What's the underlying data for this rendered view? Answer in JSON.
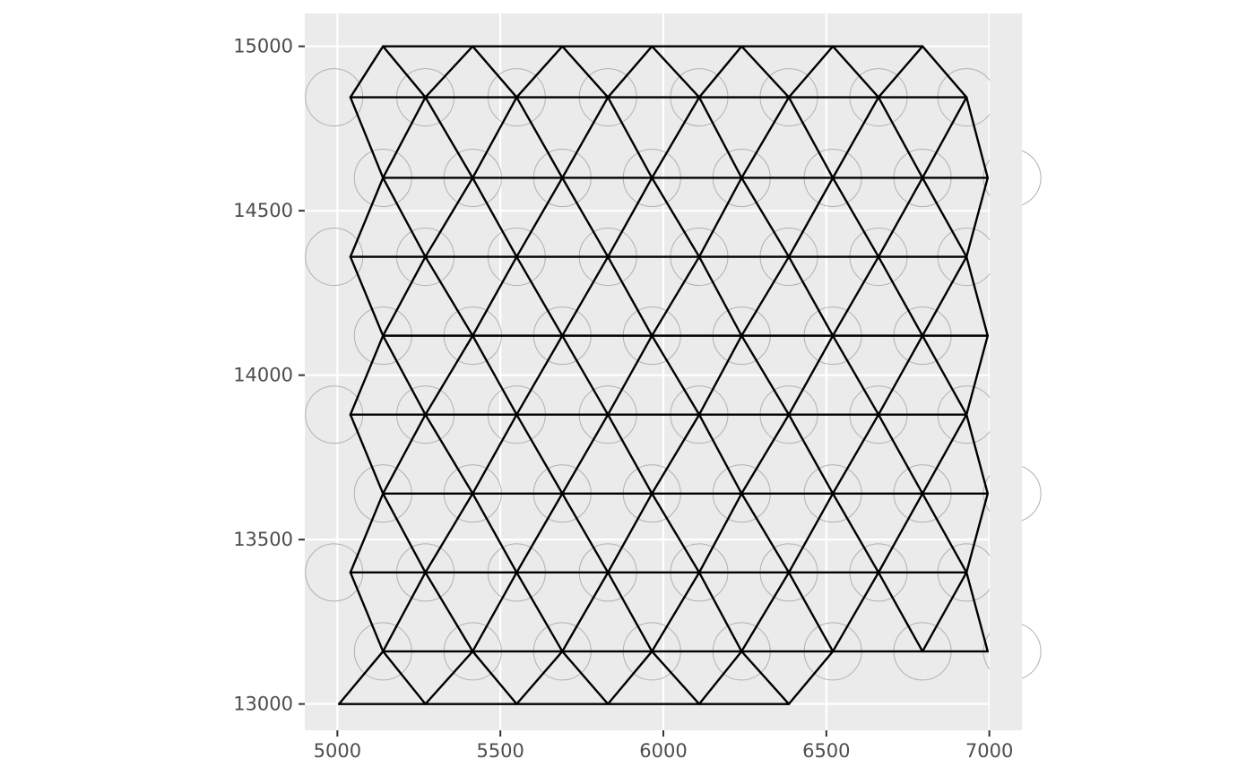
{
  "chart_data": {
    "type": "scatter",
    "description": "Spatial neighbor graph over hexagonal spot grid",
    "title": "",
    "xlabel": "",
    "ylabel": "",
    "xlim": [
      4900,
      7100
    ],
    "ylim": [
      12920,
      15100
    ],
    "grid": true,
    "background": "#ebebeb",
    "grid_color": "#ffffff",
    "edge_color": "#000000",
    "spot_outline_color": "#b0b0b0",
    "spot_radius": 88,
    "x_ticks": [
      5000,
      5500,
      6000,
      6500,
      7000
    ],
    "x_tick_labels": [
      "5000",
      "5500",
      "6000",
      "6500",
      "7000"
    ],
    "y_ticks": [
      13000,
      13500,
      14000,
      14500,
      15000
    ],
    "y_tick_labels": [
      "13000",
      "13500",
      "14000",
      "14500",
      "15000"
    ],
    "rows": [
      {
        "y": 15000,
        "x": [
          5140,
          5415,
          5690,
          5965,
          6240,
          6520,
          6795
        ]
      },
      {
        "y": 14845,
        "x": [
          5040,
          5270,
          5550,
          5830,
          6110,
          6385,
          6660,
          6930
        ]
      },
      {
        "y": 14600,
        "x": [
          5140,
          5415,
          5690,
          5965,
          6240,
          6520,
          6795,
          6995
        ]
      },
      {
        "y": 14360,
        "x": [
          5040,
          5270,
          5550,
          5830,
          6110,
          6385,
          6660,
          6930
        ]
      },
      {
        "y": 14120,
        "x": [
          5140,
          5415,
          5690,
          5965,
          6240,
          6520,
          6795,
          6995
        ]
      },
      {
        "y": 13880,
        "x": [
          5040,
          5270,
          5550,
          5830,
          6110,
          6385,
          6660,
          6930
        ]
      },
      {
        "y": 13640,
        "x": [
          5140,
          5415,
          5690,
          5965,
          6240,
          6520,
          6795,
          6995
        ]
      },
      {
        "y": 13400,
        "x": [
          5040,
          5270,
          5550,
          5830,
          6110,
          6385,
          6660,
          6930
        ]
      },
      {
        "y": 13160,
        "x": [
          5140,
          5415,
          5690,
          5965,
          6240,
          6520,
          6795,
          6995
        ]
      },
      {
        "y": 13000,
        "x": [
          5005,
          5270,
          5550,
          5830,
          6110,
          6385
        ]
      }
    ],
    "spot_centers": [
      {
        "y": 14845,
        "x": [
          4990,
          5270,
          5550,
          5830,
          6110,
          6385,
          6660,
          6930
        ]
      },
      {
        "y": 14600,
        "x": [
          5140,
          5415,
          5690,
          5965,
          6240,
          6520,
          6795,
          7070
        ]
      },
      {
        "y": 14360,
        "x": [
          4990,
          5270,
          5550,
          5830,
          6110,
          6385,
          6660,
          6930
        ]
      },
      {
        "y": 14120,
        "x": [
          5140,
          5415,
          5690,
          5965,
          6240,
          6520,
          6795
        ]
      },
      {
        "y": 13880,
        "x": [
          4990,
          5270,
          5550,
          5830,
          6110,
          6385,
          6660,
          6930
        ]
      },
      {
        "y": 13640,
        "x": [
          5140,
          5415,
          5690,
          5965,
          6240,
          6520,
          6795,
          7070
        ]
      },
      {
        "y": 13400,
        "x": [
          4990,
          5270,
          5550,
          5830,
          6110,
          6385,
          6660,
          6930
        ]
      },
      {
        "y": 13160,
        "x": [
          5140,
          5415,
          5690,
          5965,
          6240,
          6520,
          6795,
          7070
        ]
      }
    ]
  }
}
